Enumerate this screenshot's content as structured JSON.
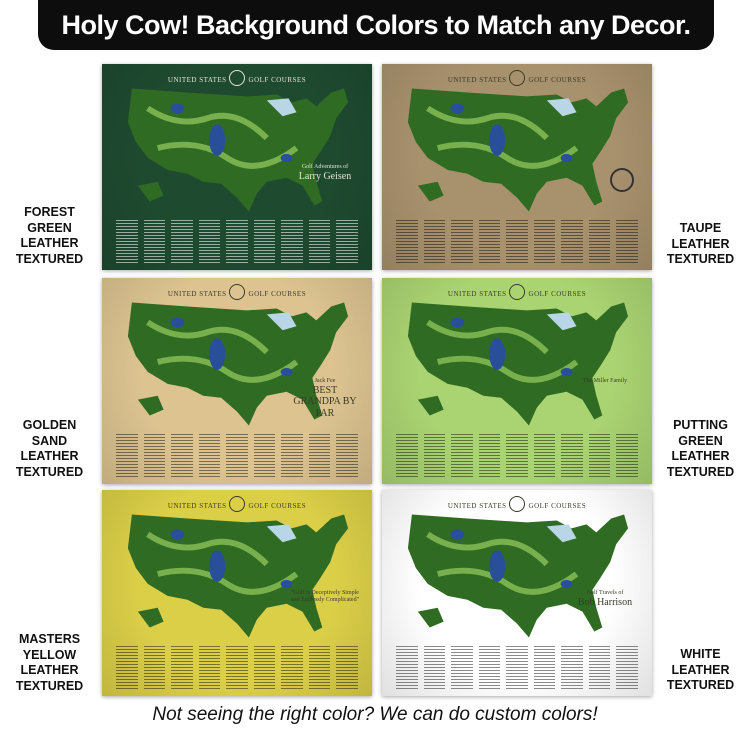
{
  "header": {
    "title": "Holy Cow! Background Colors to Match any Decor."
  },
  "poster_title": {
    "left": "UNITED STATES",
    "right": "GOLF COURSES"
  },
  "posters": [
    {
      "color_name": "FOREST GREEN LEATHER TEXTURED",
      "label_lines": [
        "FOREST",
        "GREEN",
        "LEATHER",
        "TEXTURED"
      ],
      "background": "#1e4a30",
      "personalization": {
        "line1": "Golf Adventures of",
        "line2": "Larry Geisen"
      }
    },
    {
      "color_name": "TAUPE LEATHER TEXTURED",
      "label_lines": [
        "TAUPE",
        "LEATHER",
        "TEXTURED"
      ],
      "background": "#a8916d",
      "personalization": {
        "icon": "compass-rose-icon"
      }
    },
    {
      "color_name": "GOLDEN SAND LEATHER TEXTURED",
      "label_lines": [
        "GOLDEN",
        "SAND",
        "LEATHER",
        "TEXTURED"
      ],
      "background": "#dcc390",
      "personalization": {
        "line1": "Jack Fee",
        "line2": "BEST GRANDPA BY PAR"
      }
    },
    {
      "color_name": "PUTTING GREEN LEATHER TEXTURED",
      "label_lines": [
        "PUTTING",
        "GREEN",
        "LEATHER",
        "TEXTURED"
      ],
      "background": "#aad472",
      "personalization": {
        "line1": "The Miller Family"
      }
    },
    {
      "color_name": "MASTERS YELLOW LEATHER TEXTURED",
      "label_lines": [
        "MASTERS",
        "YELLOW",
        "LEATHER",
        "TEXTURED"
      ],
      "background": "#dccf48",
      "personalization": {
        "line1": "\"Golf is Deceptively Simple and Endlessly Complicated\""
      }
    },
    {
      "color_name": "WHITE LEATHER TEXTURED",
      "label_lines": [
        "WHITE",
        "LEATHER",
        "TEXTURED"
      ],
      "background": "#ffffff",
      "personalization": {
        "line1": "Golf Travels of",
        "line2": "Bob Harrison"
      }
    }
  ],
  "footer": {
    "text": "Not seeing the right color?  We can do custom colors!"
  }
}
